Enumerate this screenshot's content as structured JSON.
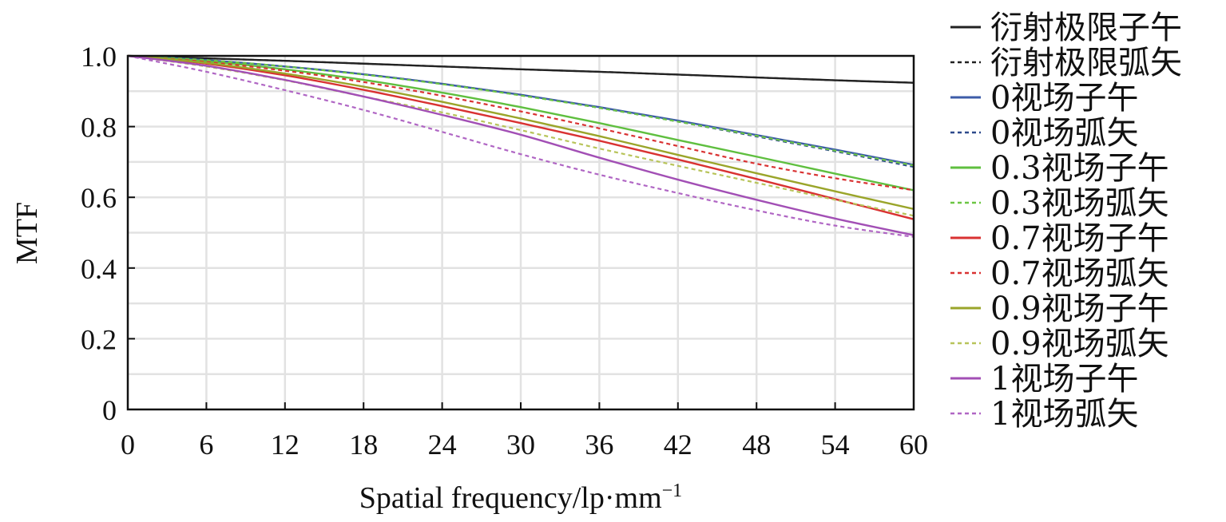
{
  "chart_data": {
    "type": "line",
    "xlabel": "Spatial frequency/lp·mm",
    "xlabel_sup": "−1",
    "ylabel": "MTF",
    "xlim": [
      0,
      60
    ],
    "ylim": [
      0,
      1.0
    ],
    "x_ticks": [
      0,
      6,
      12,
      18,
      24,
      30,
      36,
      42,
      48,
      54,
      60
    ],
    "x_tick_labels": [
      "0",
      "6",
      "12",
      "18",
      "24",
      "30",
      "36",
      "42",
      "48",
      "54",
      "60"
    ],
    "y_ticks": [
      0,
      0.2,
      0.4,
      0.6,
      0.8,
      1.0
    ],
    "y_tick_labels": [
      "0",
      "0.2",
      "0.4",
      "0.6",
      "0.8",
      "1.0"
    ],
    "grid": true,
    "legend_position": "right",
    "x": [
      0,
      6,
      12,
      18,
      24,
      30,
      36,
      42,
      48,
      54,
      60
    ],
    "series": [
      {
        "name": "衍射极限子午",
        "color": "#222222",
        "dash": "solid",
        "values": [
          1.0,
          0.993,
          0.986,
          0.978,
          0.97,
          0.962,
          0.955,
          0.947,
          0.939,
          0.931,
          0.924
        ]
      },
      {
        "name": "衍射极限弧矢",
        "color": "#222222",
        "dash": "dotted",
        "values": [
          1.0,
          0.993,
          0.986,
          0.978,
          0.97,
          0.962,
          0.955,
          0.947,
          0.939,
          0.931,
          0.924
        ]
      },
      {
        "name": "0视场子午",
        "color": "#3d5ca8",
        "dash": "solid",
        "values": [
          1.0,
          0.988,
          0.97,
          0.948,
          0.921,
          0.89,
          0.855,
          0.817,
          0.776,
          0.735,
          0.692
        ]
      },
      {
        "name": "0视场弧矢",
        "color": "#2e4a8c",
        "dash": "dotted",
        "values": [
          1.0,
          0.988,
          0.97,
          0.948,
          0.921,
          0.889,
          0.853,
          0.814,
          0.772,
          0.73,
          0.686
        ]
      },
      {
        "name": "0.3视场子午",
        "color": "#5fbf3f",
        "dash": "solid",
        "values": [
          1.0,
          0.985,
          0.962,
          0.932,
          0.896,
          0.855,
          0.81,
          0.762,
          0.715,
          0.667,
          0.62
        ]
      },
      {
        "name": "0.3视场弧矢",
        "color": "#6cc644",
        "dash": "dotted",
        "values": [
          1.0,
          0.988,
          0.97,
          0.947,
          0.92,
          0.888,
          0.853,
          0.814,
          0.774,
          0.732,
          0.69
        ]
      },
      {
        "name": "0.7视场子午",
        "color": "#d93232",
        "dash": "solid",
        "values": [
          1.0,
          0.978,
          0.945,
          0.904,
          0.858,
          0.81,
          0.76,
          0.707,
          0.652,
          0.595,
          0.538
        ]
      },
      {
        "name": "0.7视场弧矢",
        "color": "#d93232",
        "dash": "dotted",
        "values": [
          1.0,
          0.983,
          0.958,
          0.926,
          0.887,
          0.843,
          0.795,
          0.745,
          0.695,
          0.654,
          0.62
        ]
      },
      {
        "name": "0.9视场子午",
        "color": "#9aa52a",
        "dash": "solid",
        "values": [
          1.0,
          0.98,
          0.95,
          0.913,
          0.87,
          0.823,
          0.773,
          0.72,
          0.668,
          0.617,
          0.567
        ]
      },
      {
        "name": "0.9视场弧矢",
        "color": "#b8c45a",
        "dash": "dotted",
        "values": [
          1.0,
          0.97,
          0.931,
          0.885,
          0.84,
          0.79,
          0.738,
          0.689,
          0.641,
          0.593,
          0.548
        ]
      },
      {
        "name": "1视场子午",
        "color": "#a24fb5",
        "dash": "solid",
        "values": [
          1.0,
          0.972,
          0.932,
          0.885,
          0.833,
          0.777,
          0.712,
          0.65,
          0.593,
          0.54,
          0.493
        ]
      },
      {
        "name": "1视场弧矢",
        "color": "#b066c4",
        "dash": "dotted",
        "values": [
          1.0,
          0.955,
          0.903,
          0.847,
          0.785,
          0.722,
          0.664,
          0.612,
          0.563,
          0.52,
          0.488
        ]
      }
    ]
  }
}
